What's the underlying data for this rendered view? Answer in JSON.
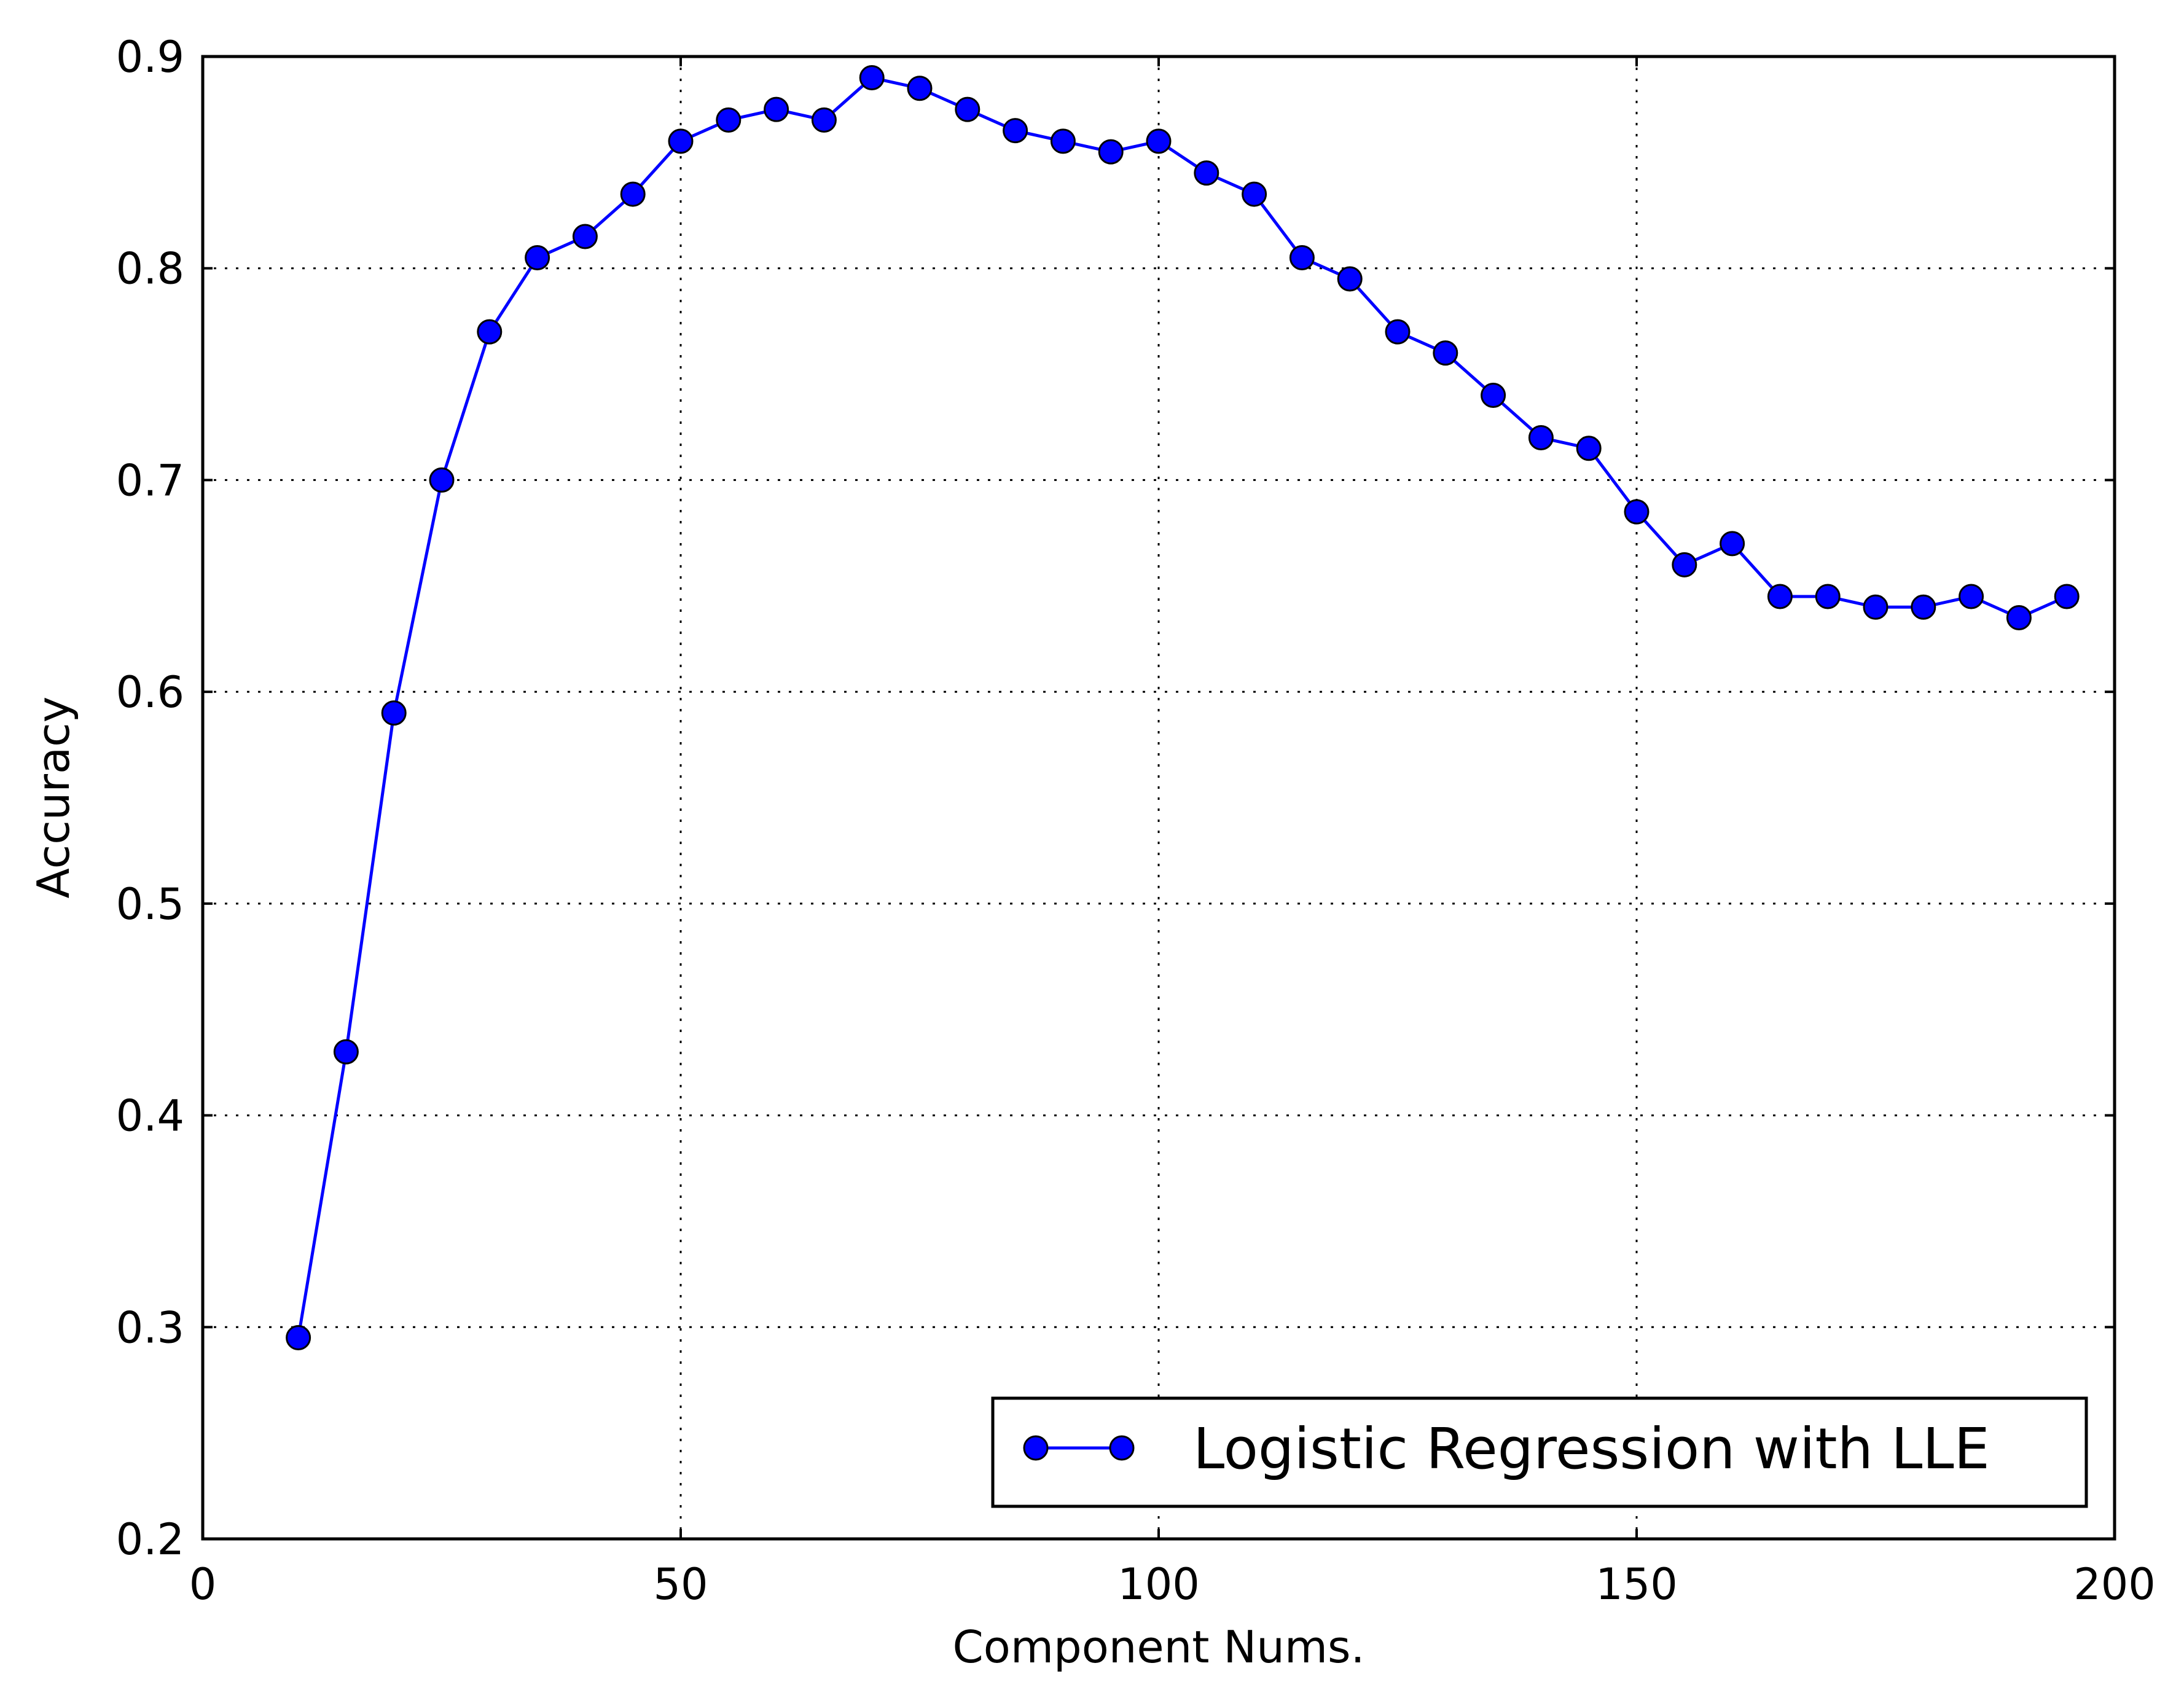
{
  "chart_data": {
    "type": "line",
    "xlabel": "Component Nums.",
    "ylabel": "Accuracy",
    "xlim": [
      0,
      200
    ],
    "ylim": [
      0.2,
      0.9
    ],
    "xticks": [
      0,
      50,
      100,
      150,
      200
    ],
    "yticks": [
      0.2,
      0.3,
      0.4,
      0.5,
      0.6,
      0.7,
      0.8,
      0.9
    ],
    "xtick_labels": [
      "0",
      "50",
      "100",
      "150",
      "200"
    ],
    "ytick_labels": [
      "0.2",
      "0.3",
      "0.4",
      "0.5",
      "0.6",
      "0.7",
      "0.8",
      "0.9"
    ],
    "grid": true,
    "legend_position": "bottom-right",
    "series": [
      {
        "name": "Logistic Regression with LLE",
        "color": "#0000ff",
        "marker": "circle",
        "x": [
          10,
          15,
          20,
          25,
          30,
          35,
          40,
          45,
          50,
          55,
          60,
          65,
          70,
          75,
          80,
          85,
          90,
          95,
          100,
          105,
          110,
          115,
          120,
          125,
          130,
          135,
          140,
          145,
          150,
          155,
          160,
          165,
          170,
          175,
          180,
          185,
          190,
          195
        ],
        "y": [
          0.295,
          0.43,
          0.59,
          0.7,
          0.77,
          0.805,
          0.815,
          0.835,
          0.86,
          0.87,
          0.875,
          0.87,
          0.89,
          0.885,
          0.875,
          0.865,
          0.86,
          0.855,
          0.86,
          0.845,
          0.835,
          0.805,
          0.795,
          0.77,
          0.76,
          0.74,
          0.72,
          0.715,
          0.685,
          0.66,
          0.67,
          0.645,
          0.645,
          0.64,
          0.64,
          0.645,
          0.635,
          0.645
        ]
      }
    ]
  }
}
